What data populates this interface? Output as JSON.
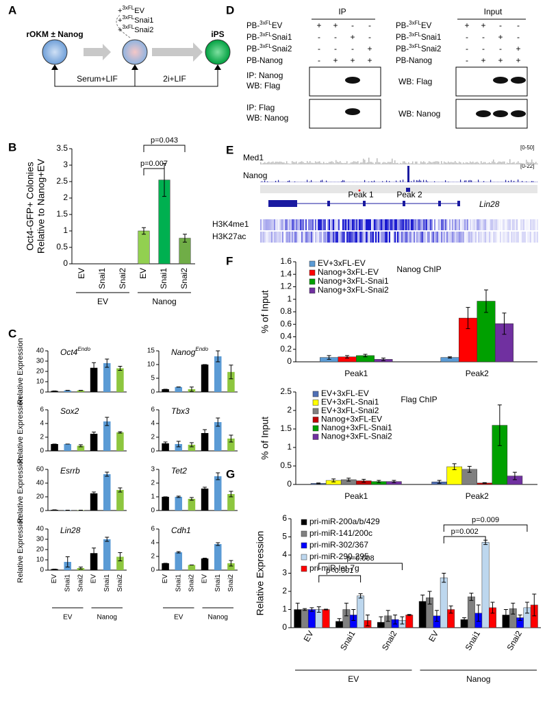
{
  "panel_labels": [
    "A",
    "B",
    "C",
    "D",
    "E",
    "F",
    "G"
  ],
  "diagram": {
    "start": "rOKM ± Nanog",
    "end": "iPS",
    "constructs": [
      {
        "sign": "+",
        "sup": "3xFL",
        "name": "EV"
      },
      {
        "sign": "+",
        "sup": "3xFL",
        "name": "Snai1"
      },
      {
        "sign": "+",
        "sup": "3xFL",
        "name": "Snai2"
      }
    ],
    "conditions": [
      "Serum+LIF",
      "2i+LIF"
    ]
  },
  "blot": {
    "ip_header": "IP",
    "input_header": "Input",
    "rows": [
      {
        "pre": "PB-",
        "sup": "3xFL",
        "name": "EV",
        "ip": [
          "+",
          "+",
          "-",
          "-"
        ],
        "input": [
          "+",
          "+",
          "-",
          "-"
        ]
      },
      {
        "pre": "PB-",
        "sup": "3xFL",
        "name": "Snai1",
        "ip": [
          "-",
          "-",
          "+",
          "-"
        ],
        "input": [
          "-",
          "-",
          "+",
          "-"
        ]
      },
      {
        "pre": "PB-",
        "sup": "3xFL",
        "name": "Snai2",
        "ip": [
          "-",
          "-",
          "-",
          "+"
        ],
        "input": [
          "-",
          "-",
          "-",
          "+"
        ]
      },
      {
        "pre": "PB-Nanog",
        "ip": [
          "-",
          "+",
          "+",
          "+"
        ],
        "input": [
          "-",
          "+",
          "+",
          "+"
        ]
      }
    ],
    "ip_blots": [
      [
        "IP: Nanog",
        "WB: Flag"
      ],
      [
        "IP: Flag",
        "WB: Nanog"
      ]
    ],
    "input_blots": [
      "WB: Flag",
      "WB: Nanog"
    ]
  },
  "tracks": {
    "med1": "Med1",
    "med1_range": "[0-50]",
    "nanog": "Nanog",
    "nanog_range": "[0-22]",
    "peaks": [
      "Peak 1",
      "Peak 2"
    ],
    "gene": "Lin28",
    "marks": [
      "H3K4me1",
      "H3K27ac"
    ]
  },
  "chart_data": [
    {
      "type": "bar",
      "categories": [
        "EV",
        "Snai1",
        "Snai2",
        "EV",
        "Snai1",
        "Snai2"
      ],
      "groups": [
        "EV",
        "Nanog"
      ],
      "ylabel": [
        "Oct4-GFP+ Colonies",
        "Relative to Nanog+EV"
      ],
      "series": [
        {
          "colors": [
            "#92d050",
            "#00b050",
            "#70ad47",
            "#92d050",
            "#00b050",
            "#70ad47"
          ],
          "values": [
            0,
            0,
            0,
            1,
            2.55,
            0.78
          ],
          "errors": [
            0,
            0,
            0,
            0.1,
            0.5,
            0.12
          ]
        }
      ],
      "ylim": [
        0,
        3.5
      ],
      "yticks": [
        0,
        0.5,
        1,
        1.5,
        2,
        2.5,
        3,
        3.5
      ],
      "annotations": [
        "p=0.007",
        "p=0.043"
      ]
    },
    {
      "type": "bar",
      "title": "Oct4",
      "title_sup": "Endo",
      "ylabel": "Relative Expression",
      "series": [
        {
          "colors": [
            "#000000",
            "#5b9bd5",
            "#8dc63f",
            "#000000",
            "#5b9bd5",
            "#8dc63f"
          ],
          "values": [
            1,
            1.5,
            1.5,
            23.5,
            28,
            23
          ],
          "errors": [
            0,
            0,
            0,
            5,
            4,
            2
          ]
        }
      ],
      "ylim": [
        0,
        40
      ],
      "yticks": [
        0,
        10,
        20,
        30,
        40
      ]
    },
    {
      "type": "bar",
      "title": "Nanog",
      "title_sup": "Endo",
      "series": [
        {
          "colors": [
            "#000000",
            "#5b9bd5",
            "#8dc63f",
            "#000000",
            "#5b9bd5",
            "#8dc63f"
          ],
          "values": [
            1,
            1.8,
            1,
            10,
            13,
            7.3
          ],
          "errors": [
            0,
            0,
            0.8,
            0,
            2,
            2.5
          ]
        }
      ],
      "ylim": [
        0,
        15
      ],
      "yticks": [
        0,
        5,
        10,
        15
      ]
    },
    {
      "type": "bar",
      "title": "Sox2",
      "ylabel": "Relative Expression",
      "series": [
        {
          "colors": [
            "#000000",
            "#5b9bd5",
            "#8dc63f",
            "#000000",
            "#5b9bd5",
            "#8dc63f"
          ],
          "values": [
            1,
            1,
            0.75,
            2.5,
            4.3,
            2.7
          ],
          "errors": [
            0,
            0,
            0.15,
            0.25,
            0.6,
            0.1
          ]
        }
      ],
      "ylim": [
        0,
        6
      ],
      "yticks": [
        0,
        2,
        4,
        6
      ]
    },
    {
      "type": "bar",
      "title": "Tbx3",
      "series": [
        {
          "colors": [
            "#000000",
            "#5b9bd5",
            "#8dc63f",
            "#000000",
            "#5b9bd5",
            "#8dc63f"
          ],
          "values": [
            1.1,
            1,
            0.9,
            2.6,
            4.2,
            1.8
          ],
          "errors": [
            0.2,
            0.4,
            0.3,
            0.5,
            0.6,
            0.5
          ]
        }
      ],
      "ylim": [
        0,
        6
      ],
      "yticks": [
        0,
        2,
        4,
        6
      ]
    },
    {
      "type": "bar",
      "title": "Esrrb",
      "ylabel": "Relative Expression",
      "series": [
        {
          "colors": [
            "#000000",
            "#5b9bd5",
            "#8dc63f",
            "#000000",
            "#5b9bd5",
            "#8dc63f"
          ],
          "values": [
            1,
            0.5,
            0.5,
            25,
            53,
            30
          ],
          "errors": [
            0,
            0,
            0,
            2,
            3,
            3
          ]
        }
      ],
      "ylim": [
        0,
        60
      ],
      "yticks": [
        0,
        20,
        40,
        60
      ]
    },
    {
      "type": "bar",
      "title": "Tet2",
      "series": [
        {
          "colors": [
            "#000000",
            "#5b9bd5",
            "#8dc63f",
            "#000000",
            "#5b9bd5",
            "#8dc63f"
          ],
          "values": [
            1,
            1,
            0.85,
            1.6,
            2.5,
            1.2
          ],
          "errors": [
            0,
            0.05,
            0.1,
            0.1,
            0.25,
            0.2
          ]
        }
      ],
      "ylim": [
        0,
        3
      ],
      "yticks": [
        0,
        1,
        2,
        3
      ]
    },
    {
      "type": "bar",
      "title": "Lin28",
      "ylabel": "Relative Expression",
      "categories": [
        "EV",
        "Snai1",
        "Snai2",
        "EV",
        "Snai1",
        "Snai2"
      ],
      "groups": [
        "EV",
        "Nanog"
      ],
      "series": [
        {
          "colors": [
            "#000000",
            "#5b9bd5",
            "#8dc63f",
            "#000000",
            "#5b9bd5",
            "#8dc63f"
          ],
          "values": [
            1,
            8,
            2,
            16.5,
            30,
            13
          ],
          "errors": [
            0,
            5,
            1,
            5,
            2,
            4
          ]
        }
      ],
      "ylim": [
        0,
        40
      ],
      "yticks": [
        0,
        10,
        20,
        30,
        40
      ]
    },
    {
      "type": "bar",
      "title": "Cdh1",
      "categories": [
        "EV",
        "Snai1",
        "Snai2",
        "EV",
        "Snai1",
        "Snai2"
      ],
      "groups": [
        "EV",
        "Nanog"
      ],
      "series": [
        {
          "colors": [
            "#000000",
            "#5b9bd5",
            "#8dc63f",
            "#000000",
            "#5b9bd5",
            "#8dc63f"
          ],
          "values": [
            1,
            2.6,
            0.75,
            1.7,
            3.8,
            1
          ],
          "errors": [
            0,
            0.1,
            0,
            0.05,
            0.2,
            0.4
          ]
        }
      ],
      "ylim": [
        0,
        6
      ],
      "yticks": [
        0,
        2,
        4,
        6
      ]
    },
    {
      "type": "bar",
      "title": "Nanog ChIP",
      "ylabel": "% of Input",
      "categories": [
        "Peak1",
        "Peak2"
      ],
      "series": [
        {
          "name": "EV+3xFL-EV",
          "color": "#5b9bd5",
          "values": [
            0.07,
            0.07
          ],
          "errors": [
            0.03,
            0.01
          ]
        },
        {
          "name": "Nanog+3xFL-EV",
          "color": "#ff0000",
          "values": [
            0.08,
            0.7
          ],
          "errors": [
            0.02,
            0.17
          ]
        },
        {
          "name": "Nanog+3xFL-Snai1",
          "color": "#00a000",
          "values": [
            0.1,
            0.97
          ],
          "errors": [
            0.02,
            0.18
          ]
        },
        {
          "name": "Nanog+3xFL-Snai2",
          "color": "#7030a0",
          "values": [
            0.04,
            0.61
          ],
          "errors": [
            0.02,
            0.17
          ]
        }
      ],
      "ylim": [
        0,
        1.6
      ],
      "yticks": [
        0,
        0.2,
        0.4,
        0.6,
        0.8,
        1,
        1.2,
        1.4,
        1.6
      ]
    },
    {
      "type": "bar",
      "title": "Flag ChIP",
      "ylabel": "% of Input",
      "categories": [
        "Peak1",
        "Peak2"
      ],
      "series": [
        {
          "name": "EV+3xFL-EV",
          "color": "#4f6fb5",
          "values": [
            0.03,
            0.07
          ],
          "errors": [
            0.01,
            0.04
          ]
        },
        {
          "name": "EV+3xFL-Snai1",
          "color": "#ffff00",
          "values": [
            0.11,
            0.48
          ],
          "errors": [
            0.04,
            0.08
          ]
        },
        {
          "name": "EV+3xFL-Snai2",
          "color": "#808080",
          "values": [
            0.13,
            0.41
          ],
          "errors": [
            0.04,
            0.08
          ]
        },
        {
          "name": "Nanog+3xFL-EV",
          "color": "#c00000",
          "values": [
            0.1,
            0.04
          ],
          "errors": [
            0.04,
            0.01
          ]
        },
        {
          "name": "Nanog+3xFL-Snai1",
          "color": "#00a000",
          "values": [
            0.08,
            1.6
          ],
          "errors": [
            0.03,
            0.55
          ]
        },
        {
          "name": "Nanog+3xFL-Snai2",
          "color": "#7030a0",
          "values": [
            0.08,
            0.23
          ],
          "errors": [
            0.03,
            0.1
          ]
        }
      ],
      "ylim": [
        0,
        2.5
      ],
      "yticks": [
        0,
        0.5,
        1,
        1.5,
        2,
        2.5
      ]
    },
    {
      "type": "bar",
      "ylabel": "Relative Expression",
      "categories": [
        "EV",
        "Snai1",
        "Snai2",
        "EV",
        "Snai1",
        "Snai2"
      ],
      "groups": [
        "EV",
        "Nanog"
      ],
      "series": [
        {
          "name": "pri-miR-200a/b/429",
          "color": "#000000",
          "values": [
            1,
            0.35,
            0.3,
            1.45,
            0.45,
            0.7
          ],
          "errors": [
            0.35,
            0.15,
            0.3,
            0.35,
            0.1,
            0.3
          ]
        },
        {
          "name": "pri-miR-141/200c",
          "color": "#808080",
          "values": [
            1,
            1,
            0.65,
            1.65,
            1.7,
            1.05
          ],
          "errors": [
            0.05,
            0.35,
            0.3,
            0.35,
            0.2,
            0.3
          ]
        },
        {
          "name": "pri-miR-302/367",
          "color": "#0000ff",
          "values": [
            1,
            0.7,
            0.45,
            0.65,
            0.8,
            0.55
          ],
          "errors": [
            0.1,
            0.3,
            0.25,
            0.3,
            0.45,
            0.15
          ]
        },
        {
          "name": "pri-miR-290-295",
          "color": "#bdd7ee",
          "values": [
            1,
            1.75,
            0.4,
            2.75,
            4.7,
            1.1
          ],
          "errors": [
            0.15,
            0.12,
            0.2,
            0.25,
            0.12,
            0.3
          ]
        },
        {
          "name": "pri-miR-let-7g",
          "color": "#ff0000",
          "values": [
            1,
            0.4,
            0.7,
            1,
            1.1,
            1.25
          ],
          "errors": [
            0.02,
            0.3,
            0.03,
            0.2,
            0.3,
            0.6
          ]
        }
      ],
      "ylim": [
        0,
        6
      ],
      "yticks": [
        0,
        1,
        2,
        3,
        4,
        5,
        6
      ],
      "annotations": [
        "p<0.001",
        "p=0.008",
        "p=0.002",
        "p=0.009"
      ]
    }
  ]
}
